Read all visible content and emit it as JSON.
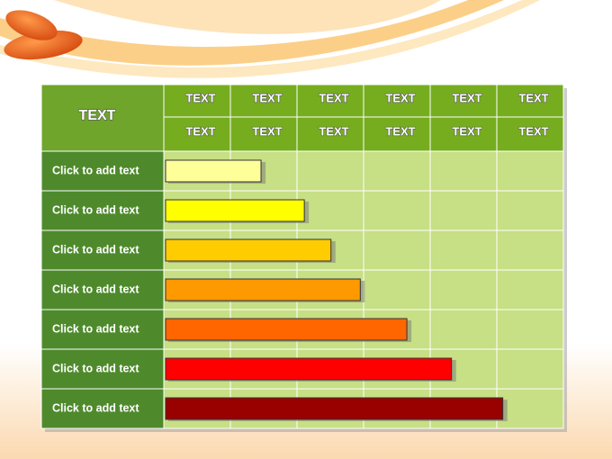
{
  "table": {
    "title": "TEXT",
    "header_rows": [
      [
        "TEXT",
        "TEXT",
        "TEXT",
        "TEXT",
        "TEXT",
        "TEXT"
      ],
      [
        "TEXT",
        "TEXT",
        "TEXT",
        "TEXT",
        "TEXT",
        "TEXT"
      ]
    ],
    "rows": [
      {
        "label": "Click to add text",
        "bar_end": 1.46,
        "color": "#ffff99"
      },
      {
        "label": "Click to add text",
        "bar_end": 2.11,
        "color": "#ffff00"
      },
      {
        "label": "Click to add text",
        "bar_end": 2.51,
        "color": "#ffcc00"
      },
      {
        "label": "Click to add text",
        "bar_end": 2.95,
        "color": "#ff9900"
      },
      {
        "label": "Click to add text",
        "bar_end": 3.65,
        "color": "#ff6600"
      },
      {
        "label": "Click to add text",
        "bar_end": 4.32,
        "color": "#ff0000"
      },
      {
        "label": "Click to add text",
        "bar_end": 5.09,
        "color": "#990000"
      }
    ]
  }
}
